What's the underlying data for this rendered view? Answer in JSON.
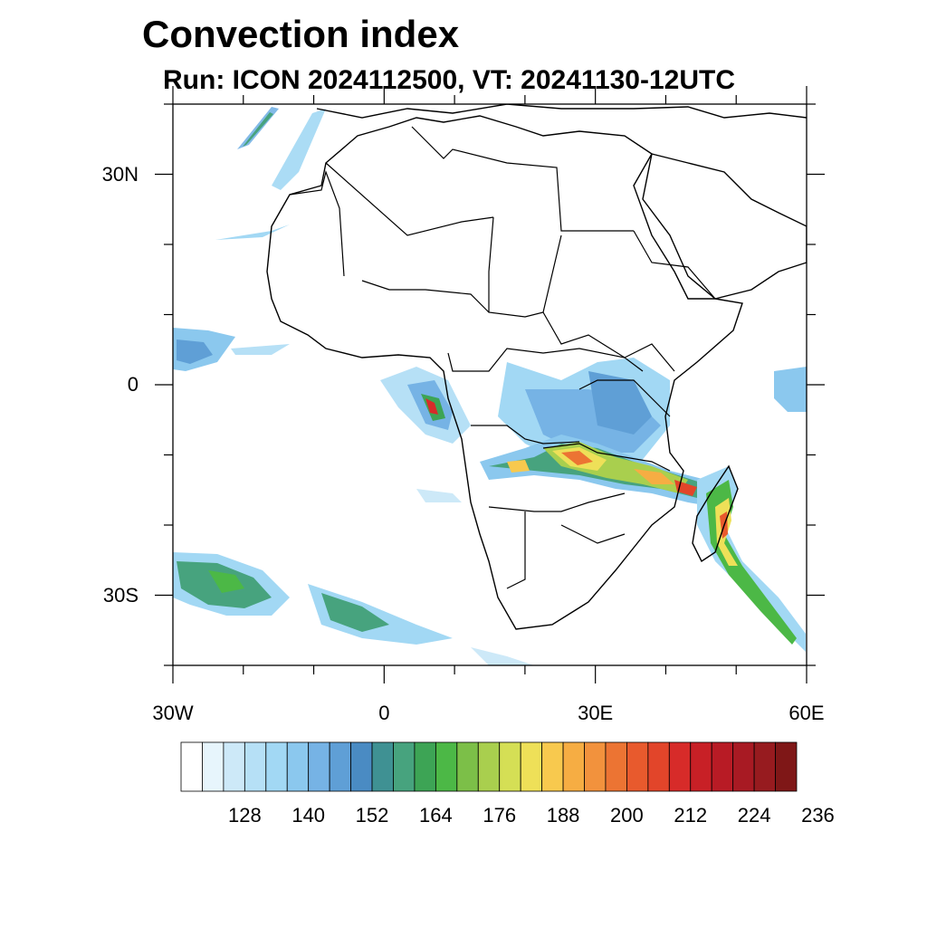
{
  "title": "Convection index",
  "subtitle": "Run: ICON 2024112500,  VT: 20241130-12UTC",
  "map": {
    "lon_range": [
      -30,
      60
    ],
    "lat_range": [
      -40,
      40
    ],
    "x_ticks": [
      {
        "label": "30W",
        "lon": -30
      },
      {
        "label": "0",
        "lon": 0
      },
      {
        "label": "30E",
        "lon": 30
      },
      {
        "label": "60E",
        "lon": 60
      }
    ],
    "y_ticks": [
      {
        "label": "30N",
        "lat": 30
      },
      {
        "label": "0",
        "lat": 0
      },
      {
        "label": "30S",
        "lat": -30
      }
    ]
  },
  "colorbar": {
    "labels": [
      "128",
      "140",
      "152",
      "164",
      "176",
      "188",
      "200",
      "212",
      "224",
      "236"
    ],
    "colors": [
      "#ffffff",
      "#e7f5fc",
      "#cde9f8",
      "#b6e0f6",
      "#a2d8f4",
      "#8bc8ee",
      "#76b3e5",
      "#5f9fd6",
      "#4a8bc3",
      "#3f9193",
      "#47a37e",
      "#3da455",
      "#4cb846",
      "#7cbf48",
      "#a9cf4e",
      "#d5df55",
      "#eee058",
      "#f8c94e",
      "#f6ad43",
      "#f2923d",
      "#ec7433",
      "#e85a2d",
      "#e2452a",
      "#d72b29",
      "#c82026",
      "#b81b25",
      "#a81a23",
      "#971b1f",
      "#7f1717"
    ]
  }
}
